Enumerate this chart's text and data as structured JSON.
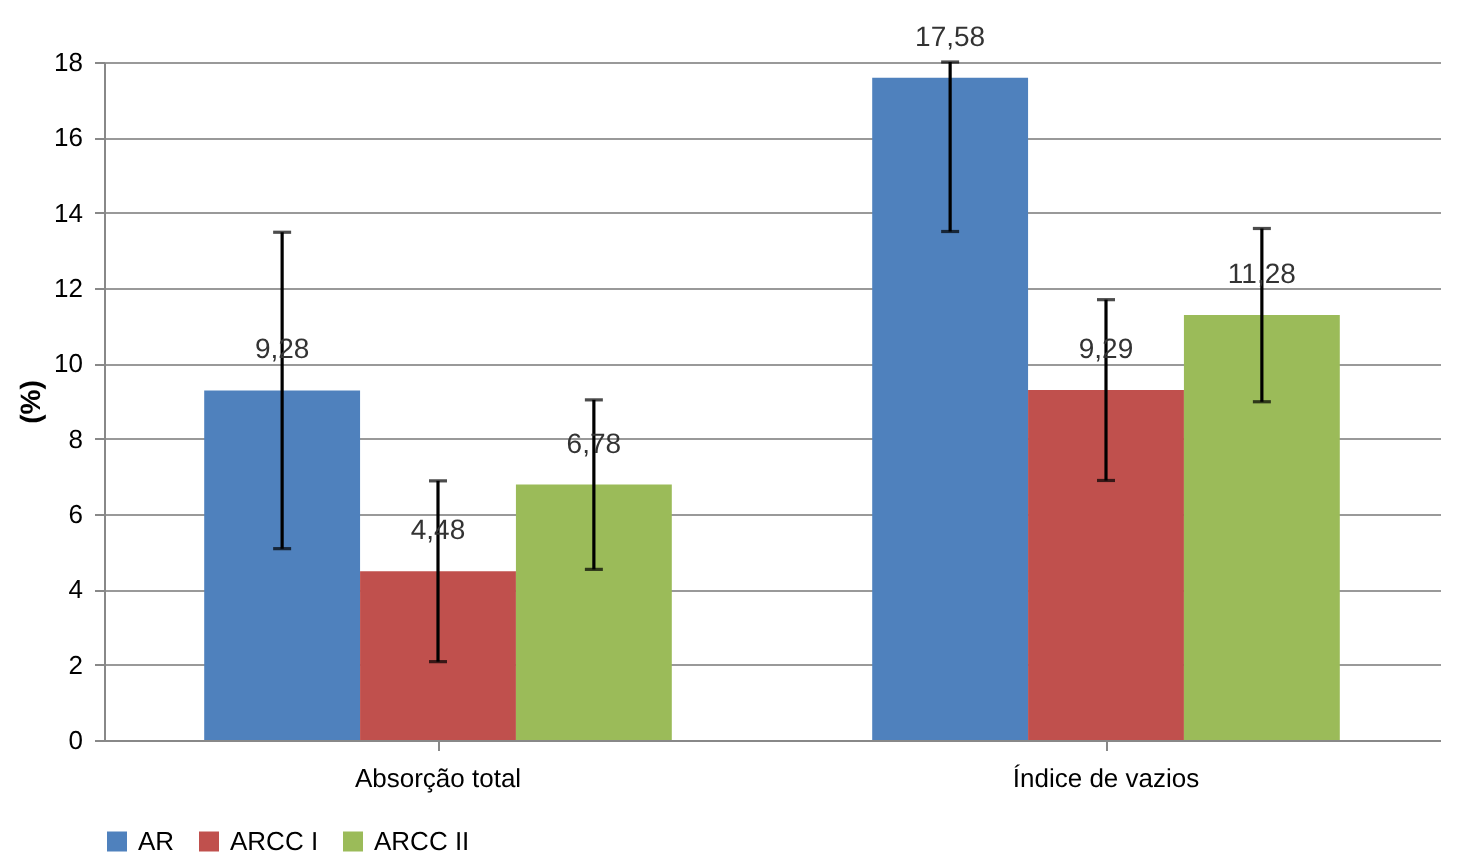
{
  "chart_data": {
    "type": "bar",
    "ylabel": "(%)",
    "categories": [
      "Absorção total",
      "Índice de vazios"
    ],
    "series": [
      {
        "name": "AR",
        "color": "#4f81bd",
        "values": [
          9.28,
          17.58
        ],
        "errors": [
          4.2,
          [
            13.5,
            18
          ]
        ],
        "value_labels": [
          "9,28",
          "17,58"
        ]
      },
      {
        "name": "ARCC I",
        "color": "#c0504d",
        "values": [
          4.48,
          9.29
        ],
        "errors": [
          2.4,
          2.4
        ],
        "value_labels": [
          "4,48",
          "9,29"
        ]
      },
      {
        "name": "ARCC II",
        "color": "#9bbb59",
        "values": [
          6.78,
          11.28
        ],
        "errors": [
          2.25,
          2.3
        ],
        "value_labels": [
          "6,78",
          "11,28"
        ]
      }
    ],
    "ylim": [
      0,
      18
    ],
    "yticks": [
      0,
      2,
      4,
      6,
      8,
      10,
      12,
      14,
      16,
      18
    ],
    "grid": "y",
    "legend": "bottom"
  }
}
